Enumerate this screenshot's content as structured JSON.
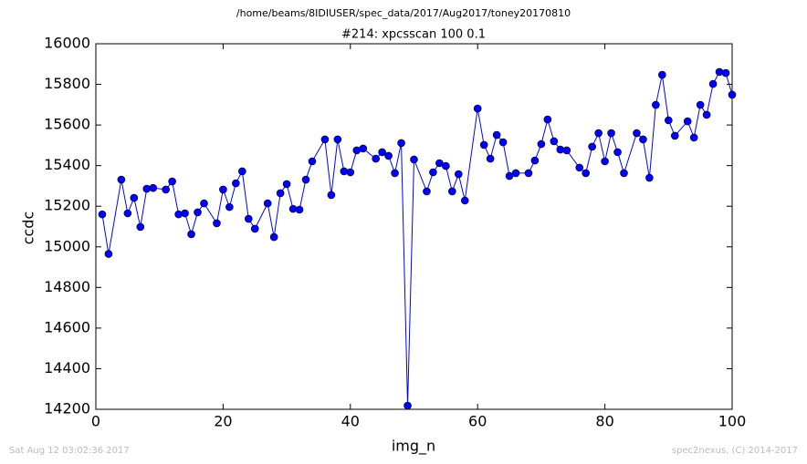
{
  "chart_data": {
    "type": "line",
    "suptitle": "/home/beams/8IDIUSER/spec_data/2017/Aug2017/toney20170810",
    "title": "#214: xpcsscan 100 0.1",
    "xlabel": "img_n",
    "ylabel": "ccdc",
    "footer_left": "Sat Aug 12 03:02:36 2017",
    "footer_right": "spec2nexus, (C) 2014-2017",
    "x": [
      1,
      2,
      4,
      5,
      6,
      7,
      8,
      9,
      11,
      12,
      13,
      14,
      15,
      16,
      17,
      19,
      20,
      21,
      22,
      23,
      24,
      25,
      27,
      28,
      29,
      30,
      31,
      32,
      33,
      34,
      36,
      37,
      38,
      39,
      40,
      41,
      42,
      44,
      45,
      46,
      47,
      48,
      49,
      50,
      52,
      53,
      54,
      55,
      56,
      57,
      58,
      60,
      61,
      62,
      63,
      64,
      65,
      66,
      68,
      69,
      70,
      71,
      72,
      73,
      74,
      76,
      77,
      78,
      79,
      80,
      81,
      82,
      83,
      85,
      86,
      87,
      88,
      89,
      90,
      91,
      93,
      94,
      95,
      96,
      97,
      98,
      99,
      100
    ],
    "series": [
      {
        "color": "#0000ff",
        "values": [
          15160,
          14965,
          15331,
          15165,
          15241,
          15098,
          15286,
          15290,
          15282,
          15322,
          15160,
          15165,
          15062,
          15170,
          15214,
          15116,
          15282,
          15196,
          15313,
          15372,
          15138,
          15089,
          15214,
          15048,
          15264,
          15309,
          15187,
          15183,
          15331,
          15421,
          15529,
          15255,
          15529,
          15372,
          15367,
          15475,
          15484,
          15434,
          15466,
          15448,
          15363,
          15511,
          14218,
          15430,
          15273,
          15367,
          15412,
          15398,
          15273,
          15358,
          15228,
          15681,
          15502,
          15434,
          15551,
          15515,
          15349,
          15363,
          15363,
          15425,
          15506,
          15627,
          15520,
          15479,
          15475,
          15390,
          15363,
          15493,
          15560,
          15421,
          15560,
          15466,
          15363,
          15560,
          15529,
          15340,
          15699,
          15847,
          15623,
          15547,
          15618,
          15538,
          15699,
          15650,
          15802,
          15861,
          15856,
          15749
        ]
      }
    ],
    "xlim": [
      0,
      100
    ],
    "ylim": [
      14200,
      16000
    ],
    "xticks": [
      0,
      20,
      40,
      60,
      80,
      100
    ],
    "yticks": [
      14200,
      14400,
      14600,
      14800,
      15000,
      15200,
      15400,
      15600,
      15800,
      16000
    ]
  }
}
